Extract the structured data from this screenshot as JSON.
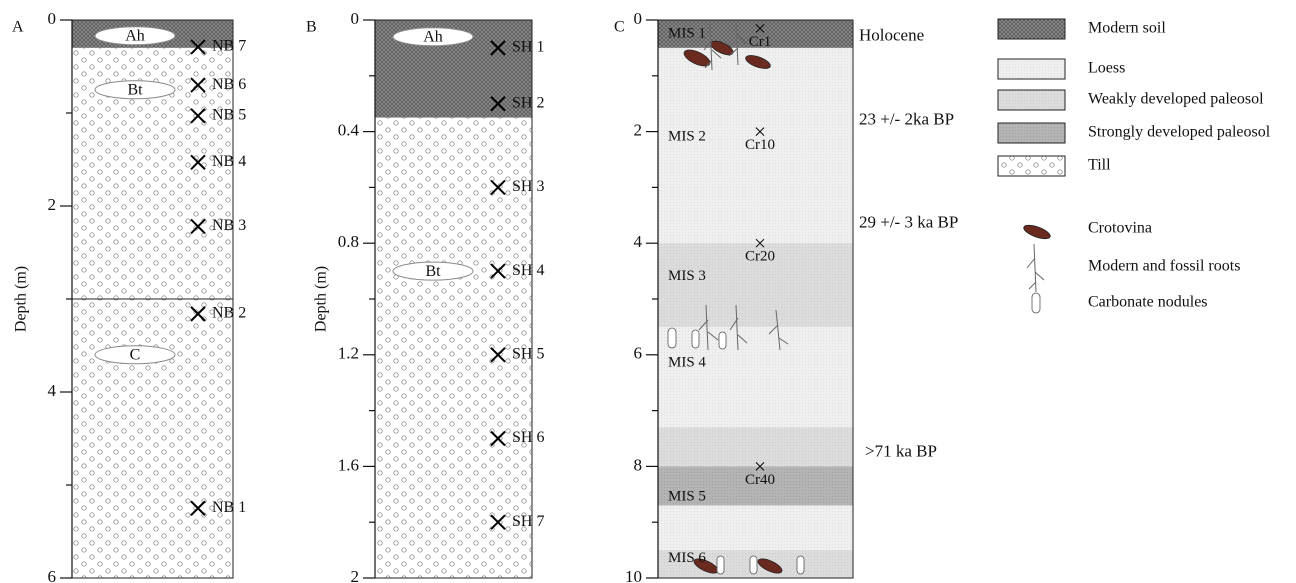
{
  "chart_data": [
    {
      "type": "column",
      "panel_label": "A",
      "ylabel": "Depth (m)",
      "ylim": [
        0,
        6
      ],
      "yticks": [
        0,
        2,
        4,
        6
      ],
      "yminor": [
        1,
        3,
        5
      ],
      "layers": [
        {
          "top": 0,
          "bottom": 0.3,
          "pattern": "soil"
        },
        {
          "top": 0.3,
          "bottom": 6,
          "pattern": "till"
        }
      ],
      "boundaries": [
        3
      ],
      "horizons": [
        {
          "label": "Ah",
          "depth": 0.17
        },
        {
          "label": "Bt",
          "depth": 0.75
        },
        {
          "label": "C",
          "depth": 3.6
        }
      ],
      "samples": [
        {
          "name": "NB 7",
          "depth": 0.29
        },
        {
          "name": "NB 6",
          "depth": 0.7
        },
        {
          "name": "NB 5",
          "depth": 1.03
        },
        {
          "name": "NB 4",
          "depth": 1.53
        },
        {
          "name": "NB 3",
          "depth": 2.22
        },
        {
          "name": "NB 2",
          "depth": 3.16
        },
        {
          "name": "NB 1",
          "depth": 5.25
        }
      ]
    },
    {
      "type": "column",
      "panel_label": "B",
      "ylabel": "Depth (m)",
      "ylim": [
        0,
        2
      ],
      "yticks": [
        0,
        0.4,
        0.8,
        1.2,
        1.6,
        2
      ],
      "yminor": [
        0.2,
        0.6,
        1,
        1.4,
        1.8
      ],
      "layers": [
        {
          "top": 0,
          "bottom": 0.35,
          "pattern": "soil"
        },
        {
          "top": 0.35,
          "bottom": 2,
          "pattern": "till"
        }
      ],
      "boundaries": [],
      "horizons": [
        {
          "label": "Ah",
          "depth": 0.06
        },
        {
          "label": "Bt",
          "depth": 0.9
        }
      ],
      "samples": [
        {
          "name": "SH 1",
          "depth": 0.1
        },
        {
          "name": "SH 2",
          "depth": 0.3
        },
        {
          "name": "SH 3",
          "depth": 0.6
        },
        {
          "name": "SH 4",
          "depth": 0.9
        },
        {
          "name": "SH 5",
          "depth": 1.2
        },
        {
          "name": "SH 6",
          "depth": 1.5
        },
        {
          "name": "SH 7",
          "depth": 1.8
        }
      ]
    },
    {
      "type": "column",
      "panel_label": "C",
      "ylim": [
        0,
        10
      ],
      "yticks": [
        0,
        2,
        4,
        6,
        8,
        10
      ],
      "yminor": [
        1,
        3,
        5,
        7,
        9
      ],
      "layers": [
        {
          "top": 0,
          "bottom": 0.5,
          "pattern": "soil"
        },
        {
          "top": 0.5,
          "bottom": 4,
          "pattern": "loess"
        },
        {
          "top": 4,
          "bottom": 5.5,
          "pattern": "weak"
        },
        {
          "top": 5.5,
          "bottom": 7.3,
          "pattern": "loess"
        },
        {
          "top": 7.3,
          "bottom": 8,
          "pattern": "weak"
        },
        {
          "top": 8,
          "bottom": 8.7,
          "pattern": "strong"
        },
        {
          "top": 8.7,
          "bottom": 9.5,
          "pattern": "loess"
        },
        {
          "top": 9.5,
          "bottom": 10,
          "pattern": "weak"
        }
      ],
      "boundaries": [],
      "stages": [
        {
          "label": "MIS 1",
          "depth": 0.25
        },
        {
          "label": "MIS 2",
          "depth": 2.1
        },
        {
          "label": "MIS 3",
          "depth": 4.6
        },
        {
          "label": "MIS 4",
          "depth": 6.15
        },
        {
          "label": "MIS 5",
          "depth": 8.55
        },
        {
          "label": "MIS 6",
          "depth": 9.65
        }
      ],
      "dated_samples": [
        {
          "name": "Cr1",
          "depth": 0.15
        },
        {
          "name": "Cr10",
          "depth": 2
        },
        {
          "name": "Cr20",
          "depth": 4
        },
        {
          "name": "Cr40",
          "depth": 8
        }
      ],
      "ages": [
        {
          "label": "Holocene",
          "depth": 0.3
        },
        {
          "label": "23 +/- 2ka BP",
          "depth": 1.8
        },
        {
          "label": "29 +/- 3 ka BP",
          "depth": 3.65
        },
        {
          "label": ">71 ka BP",
          "depth": 7.75
        }
      ]
    }
  ],
  "legend": [
    {
      "name": "Modern soil",
      "pattern": "soil"
    },
    {
      "name": "Loess",
      "pattern": "loess"
    },
    {
      "name": "Weakly developed paleosol",
      "pattern": "weak"
    },
    {
      "name": "Strongly developed paleosol",
      "pattern": "strong"
    },
    {
      "name": "Till",
      "pattern": "till"
    }
  ],
  "symbols": [
    "Crotovina",
    "Modern and fossil roots",
    "Carbonate nodules"
  ]
}
